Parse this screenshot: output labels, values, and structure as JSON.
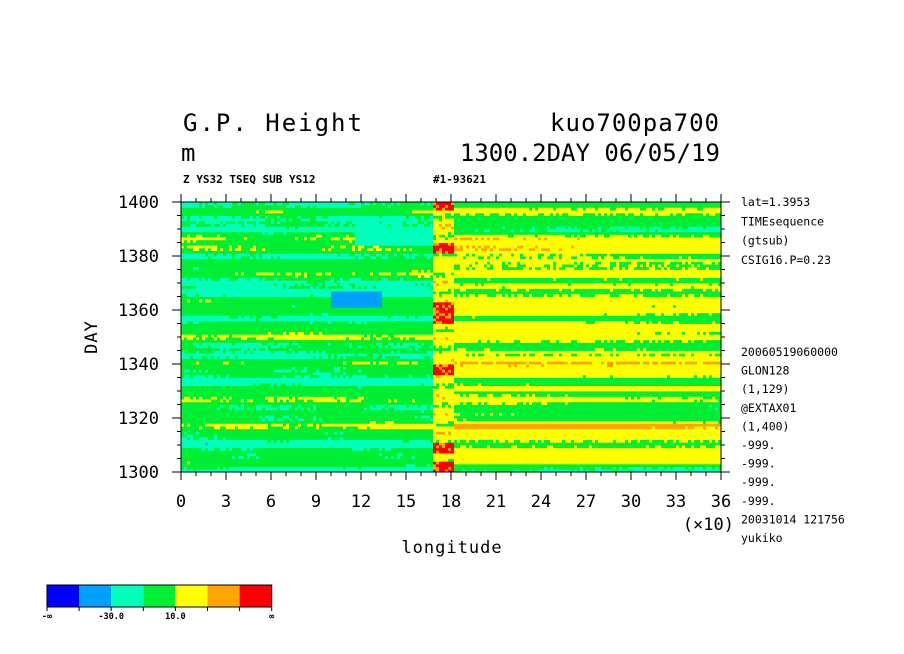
{
  "header": {
    "title": "G.P. Height",
    "units": "m",
    "run_name": "kuo700pa700",
    "time_date": "1300.2DAY 06/05/19",
    "sub_left": "Z YS32 TSEQ SUB YS12",
    "sub_right": "#1-93621"
  },
  "side_info_top": [
    "lat=1.3953",
    "TIMEsequence",
    "(gtsub)",
    "CSIG16.P=0.23"
  ],
  "side_info_bottom": [
    "20060519060000",
    "GLON128",
    "(1,129)",
    "@EXTAX01",
    "(1,400)",
    "-999.",
    "-999.",
    "-999.",
    "-999.",
    "20031014 121756",
    "yukiko"
  ],
  "colorbar": {
    "colors": [
      "#0000ff",
      "#00a0ff",
      "#00ffbb",
      "#00ee33",
      "#ffff00",
      "#ffa500",
      "#ff0000"
    ],
    "labels": [
      "-∞",
      "-30.0",
      "10.0",
      "∞"
    ]
  },
  "chart_data": {
    "type": "heatmap",
    "xlabel": "longitude",
    "ylabel": "DAY",
    "x_multiplier": "(×10)",
    "xlim": [
      0,
      36
    ],
    "ylim": [
      1300,
      1400
    ],
    "x_ticks": [
      "0",
      "3",
      "6",
      "9",
      "12",
      "15",
      "18",
      "21",
      "24",
      "27",
      "30",
      "33",
      "36"
    ],
    "y_ticks": [
      "1300",
      "1320",
      "1340",
      "1360",
      "1380",
      "1400"
    ],
    "features": [
      {
        "region": "x<17",
        "dominant": "green (-10 to 10)",
        "note": "zonal bands of cyan-green and green with yellow streaks"
      },
      {
        "region": "x 16.5-18",
        "dominant": "yellow/orange/red",
        "note": "positive anomaly ridge along ~175 deg, red peaks near day 1302, 1309, 1338, 1357, 1361, 1383, 1399"
      },
      {
        "region": "x>18",
        "dominant": "yellow (10 to 30)",
        "note": "yellow bands e.g. days 1303-1318, 1330-1345, 1352-1370, 1378-1387"
      },
      {
        "region": "x 10-13, day 1362-1366",
        "dominant": "light blue (-50 to -30)"
      }
    ]
  }
}
